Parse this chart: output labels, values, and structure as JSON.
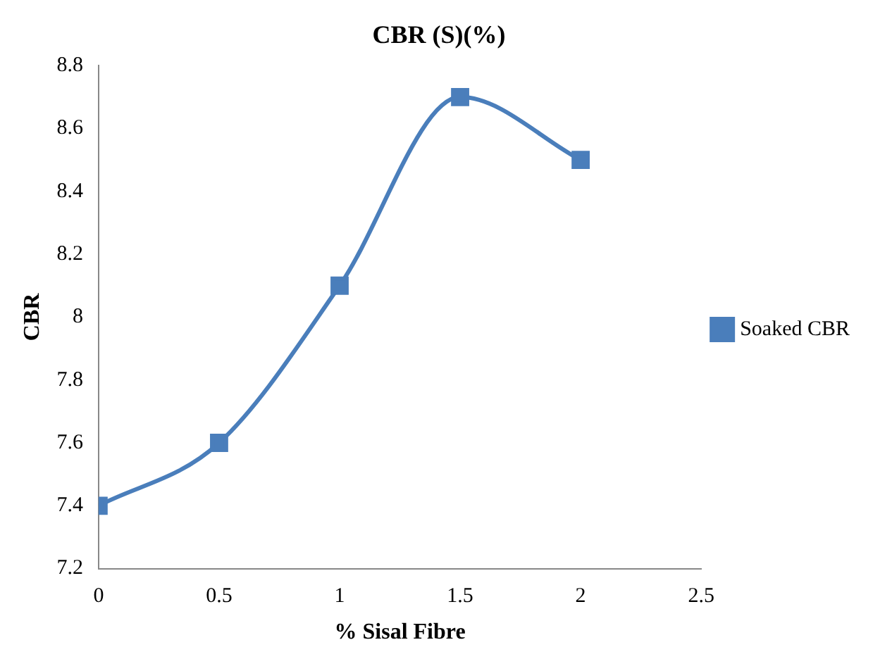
{
  "chart_data": {
    "type": "line",
    "title": "CBR (S)(%)",
    "xlabel": "% Sisal Fibre",
    "ylabel": "CBR",
    "x": [
      0,
      0.5,
      1,
      1.5,
      2
    ],
    "series": [
      {
        "name": "Soaked CBR",
        "color": "#4a7ebb",
        "values": [
          7.4,
          7.6,
          8.1,
          8.7,
          8.5
        ]
      }
    ],
    "xlim": [
      0,
      2.5
    ],
    "xticks": [
      0,
      0.5,
      1,
      1.5,
      2,
      2.5
    ],
    "ylim": [
      7.2,
      8.8
    ],
    "yticks": [
      7.2,
      7.4,
      7.6,
      7.8,
      8,
      8.2,
      8.4,
      8.6,
      8.8
    ],
    "grid": false,
    "legend": "right",
    "marker": "square",
    "line_style": "solid"
  }
}
